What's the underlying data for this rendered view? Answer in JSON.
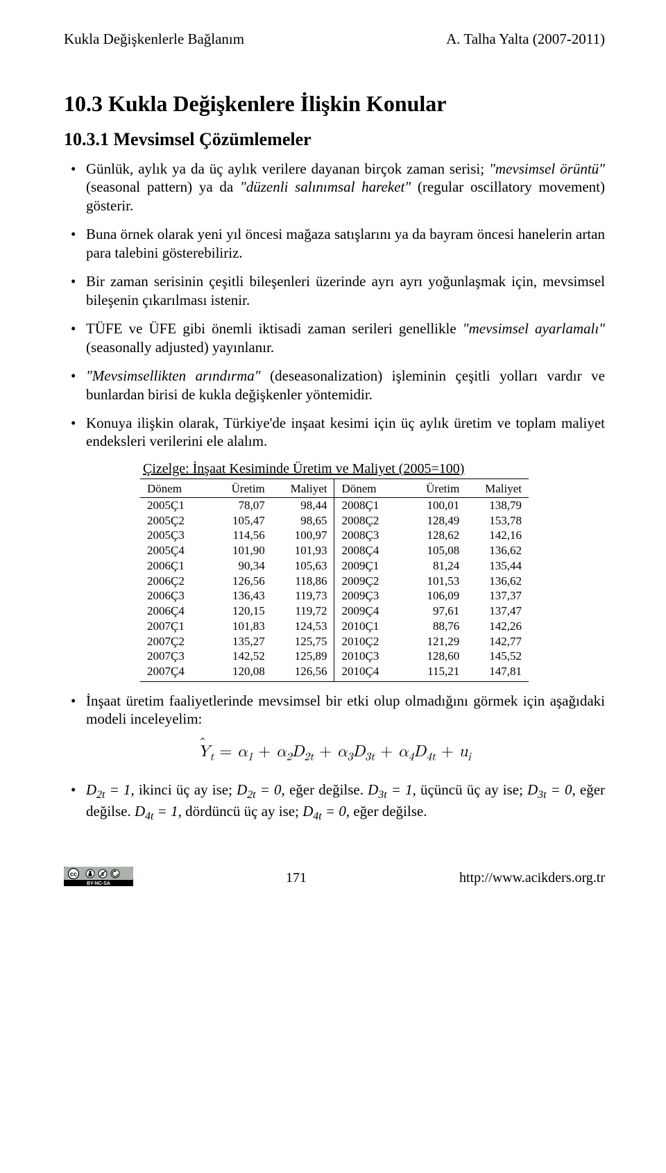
{
  "header": {
    "left": "Kukla Değişkenlerle Bağlanım",
    "right": "A. Talha Yalta (2007-2011)"
  },
  "section": {
    "number_title": "10.3   Kukla Değişkenlere İlişkin Konular",
    "sub_number_title": "10.3.1   Mevsimsel Çözümlemeler"
  },
  "bullets_top": [
    {
      "pre": "Günlük, aylık ya da üç aylık verilere dayanan birçok zaman serisi; ",
      "q1": "mevsimsel örüntü",
      "mid1": " (seasonal pattern) ya da ",
      "q2": "düzenli salınımsal hareket",
      "mid2": " (regular oscillatory movement) gösterir."
    },
    {
      "text": "Buna örnek olarak yeni yıl öncesi mağaza satışlarını ya da bayram öncesi hanelerin artan para talebini gösterebiliriz."
    },
    {
      "text": "Bir zaman serisinin çeşitli bileşenleri üzerinde ayrı ayrı yoğunlaşmak için, mevsimsel bileşenin çıkarılması istenir."
    },
    {
      "pre": "TÜFE ve ÜFE gibi önemli iktisadi zaman serileri genellikle ",
      "q1": "mevsimsel ayarlamalı",
      "mid1": " (seasonally adjusted) yayınlanır."
    },
    {
      "q1": "Mevsimsellikten arındırma",
      "mid1": " (deseasonalization) işleminin çeşitli yolları vardır ve bunlardan birisi de kukla değişkenler yöntemidir."
    },
    {
      "text": "Konuya ilişkin olarak, Türkiye'de inşaat kesimi için üç aylık üretim ve toplam maliyet endeksleri verilerini ele alalım."
    }
  ],
  "table": {
    "caption": "Çizelge: İnşaat Kesiminde Üretim ve Maliyet (2005=100)",
    "headers": [
      "Dönem",
      "Üretim",
      "Maliyet",
      "Dönem",
      "Üretim",
      "Maliyet"
    ],
    "rows": [
      [
        "2005Ç1",
        "78,07",
        "98,44",
        "2008Ç1",
        "100,01",
        "138,79"
      ],
      [
        "2005Ç2",
        "105,47",
        "98,65",
        "2008Ç2",
        "128,49",
        "153,78"
      ],
      [
        "2005Ç3",
        "114,56",
        "100,97",
        "2008Ç3",
        "128,62",
        "142,16"
      ],
      [
        "2005Ç4",
        "101,90",
        "101,93",
        "2008Ç4",
        "105,08",
        "136,62"
      ],
      [
        "2006Ç1",
        "90,34",
        "105,63",
        "2009Ç1",
        "81,24",
        "135,44"
      ],
      [
        "2006Ç2",
        "126,56",
        "118,86",
        "2009Ç2",
        "101,53",
        "136,62"
      ],
      [
        "2006Ç3",
        "136,43",
        "119,73",
        "2009Ç3",
        "106,09",
        "137,37"
      ],
      [
        "2006Ç4",
        "120,15",
        "119,72",
        "2009Ç4",
        "97,61",
        "137,47"
      ],
      [
        "2007Ç1",
        "101,83",
        "124,53",
        "2010Ç1",
        "88,76",
        "142,26"
      ],
      [
        "2007Ç2",
        "135,27",
        "125,75",
        "2010Ç2",
        "121,29",
        "142,77"
      ],
      [
        "2007Ç3",
        "142,52",
        "125,89",
        "2010Ç3",
        "128,60",
        "145,52"
      ],
      [
        "2007Ç4",
        "120,08",
        "126,56",
        "2010Ç4",
        "115,21",
        "147,81"
      ]
    ]
  },
  "bullets_bottom": [
    {
      "text": "İnşaat üretim faaliyetlerinde mevsimsel bir etki olup olmadığını görmek için aşağıdaki modeli inceleyelim:"
    }
  ],
  "equation": {
    "text": "Ŷₜ = α₁ + α₂D₂ₜ + α₃D₃ₜ + α₄D₄ₜ + uᵢ"
  },
  "bullet_final": {
    "pieces": [
      {
        "math": "D₂ₜ = 1"
      },
      {
        "t": ", ikinci üç ay ise; "
      },
      {
        "math": "D₂ₜ = 0"
      },
      {
        "t": ", eğer değilse. "
      },
      {
        "math": "D₃ₜ = 1"
      },
      {
        "t": ", üçüncü üç ay ise; "
      },
      {
        "math": "D₃ₜ = 0"
      },
      {
        "t": ", eğer değilse. "
      },
      {
        "math": "D₄ₜ = 1"
      },
      {
        "t": ", dördüncü üç ay ise; "
      },
      {
        "math": "D₄ₜ = 0"
      },
      {
        "t": ", eğer değilse."
      }
    ]
  },
  "footer": {
    "page": "171",
    "url": "http://www.acikders.org.tr",
    "license": "BY-NC-SA"
  }
}
